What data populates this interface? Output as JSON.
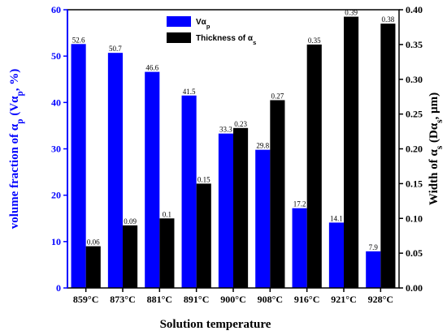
{
  "chart_data": {
    "type": "bar",
    "categories": [
      "859°C",
      "873°C",
      "881°C",
      "891°C",
      "900°C",
      "908°C",
      "916°C",
      "921°C",
      "928°C"
    ],
    "series": [
      {
        "name": "Vα_p",
        "axis": "left",
        "color": "#0000ff",
        "values": [
          52.6,
          50.7,
          46.6,
          41.5,
          33.3,
          29.8,
          17.2,
          14.1,
          7.9
        ],
        "labels": [
          "52.6",
          "50.7",
          "46.6",
          "41.5",
          "33.3",
          "29.8",
          "17.2",
          "14.1",
          "7.9"
        ]
      },
      {
        "name": "Thickness of α_s",
        "axis": "right",
        "color": "#000000",
        "values": [
          0.06,
          0.09,
          0.1,
          0.15,
          0.23,
          0.27,
          0.35,
          0.39,
          0.38
        ],
        "labels": [
          "0.06",
          "0.09",
          "0.1",
          "0.15",
          "0.23",
          "0.27",
          "0.35",
          "0.39",
          "0.38"
        ]
      }
    ],
    "xlabel": "Solution temperature",
    "ylabel_left": "volume fraction of α_p (Vα_p, %)",
    "ylabel_right": "Width of α_s (Dα_s, μm)",
    "ylim_left": [
      0,
      60
    ],
    "yticks_left": [
      "0",
      "10",
      "20",
      "30",
      "40",
      "50",
      "60"
    ],
    "ylim_right": [
      0,
      0.4
    ],
    "yticks_right": [
      "0.00",
      "0.05",
      "0.10",
      "0.15",
      "0.20",
      "0.25",
      "0.30",
      "0.35",
      "0.40"
    ],
    "left_axis_color": "#0000ff",
    "right_axis_color": "#000000",
    "grid": false,
    "legend_position": "top-left"
  }
}
